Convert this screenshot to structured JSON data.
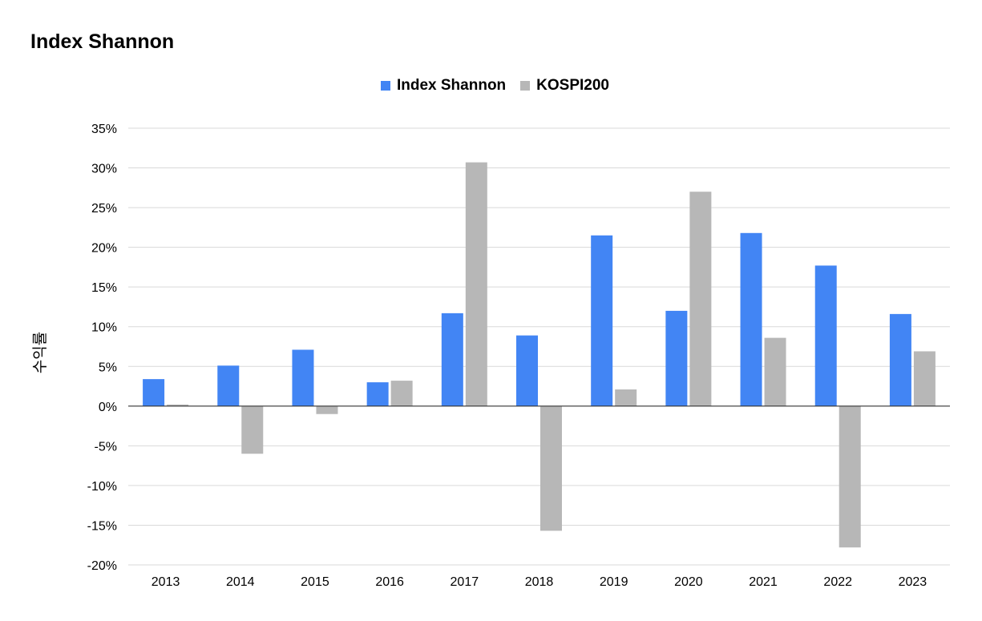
{
  "chart_data": {
    "type": "bar",
    "title": "Index Shannon",
    "xlabel": "",
    "ylabel": "수익률",
    "categories": [
      "2013",
      "2014",
      "2015",
      "2016",
      "2017",
      "2018",
      "2019",
      "2020",
      "2021",
      "2022",
      "2023"
    ],
    "series": [
      {
        "name": "Index Shannon",
        "color": "#4285f4",
        "values": [
          3.4,
          5.1,
          7.1,
          3.0,
          11.7,
          8.9,
          21.5,
          12.0,
          21.8,
          17.7,
          11.6
        ]
      },
      {
        "name": "KOSPI200",
        "color": "#b7b7b7",
        "values": [
          0.2,
          -6.0,
          -1.0,
          3.2,
          30.7,
          -15.7,
          2.1,
          27.0,
          8.6,
          -17.8,
          6.9
        ]
      }
    ],
    "ylim": [
      -20,
      35
    ],
    "yticks": [
      35,
      30,
      25,
      20,
      15,
      10,
      5,
      0,
      -5,
      -10,
      -15,
      -20
    ],
    "ytick_labels": [
      "35%",
      "30%",
      "25%",
      "20%",
      "15%",
      "10%",
      "5%",
      "0%",
      "-5%",
      "-10%",
      "-15%",
      "-20%"
    ],
    "grid": true,
    "legend_position": "top-center"
  }
}
